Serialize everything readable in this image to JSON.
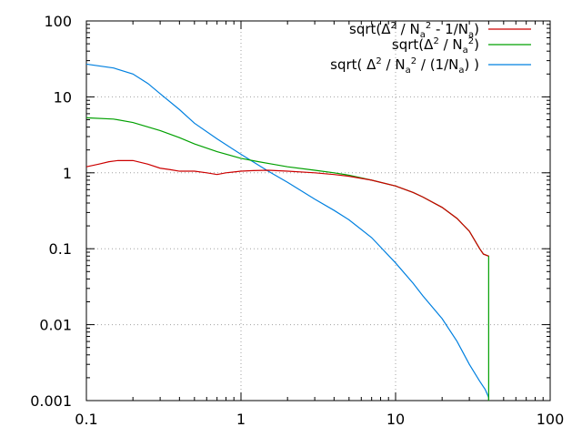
{
  "chart_data": {
    "type": "line",
    "title": "",
    "xlabel": "",
    "ylabel": "",
    "xscale": "log",
    "yscale": "log",
    "xlim": [
      0.1,
      100
    ],
    "ylim": [
      0.001,
      100
    ],
    "grid": true,
    "legend_position": "top-right",
    "x_ticks": [
      "0.1",
      "1",
      "10",
      "100"
    ],
    "y_ticks": [
      "0.001",
      "0.01",
      "0.1",
      "1",
      "10",
      "100"
    ],
    "series": [
      {
        "name": "sqrt(Δ² / Na² - 1/Na)",
        "legend_parts": [
          "sqrt(",
          "Δ",
          "2",
          " / N",
          "a",
          "2",
          " - 1/N",
          "a",
          ")"
        ],
        "color": "#cc0000",
        "x": [
          0.1,
          0.12,
          0.14,
          0.16,
          0.2,
          0.25,
          0.3,
          0.35,
          0.4,
          0.5,
          0.6,
          0.7,
          0.8,
          1.0,
          1.2,
          1.5,
          2,
          3,
          4,
          5,
          7,
          10,
          13,
          15,
          20,
          25,
          30,
          35,
          37,
          40
        ],
        "y": [
          1.2,
          1.3,
          1.4,
          1.45,
          1.45,
          1.3,
          1.15,
          1.1,
          1.05,
          1.05,
          1.0,
          0.95,
          1.0,
          1.05,
          1.07,
          1.08,
          1.05,
          1.0,
          0.95,
          0.9,
          0.8,
          0.67,
          0.55,
          0.48,
          0.35,
          0.25,
          0.17,
          0.1,
          0.085,
          0.08
        ]
      },
      {
        "name": "sqrt(Δ² / Na²)",
        "legend_parts": [
          "sqrt(",
          "Δ",
          "2",
          " / N",
          "a",
          "2",
          ")"
        ],
        "color": "#00a000",
        "x": [
          0.1,
          0.15,
          0.2,
          0.3,
          0.4,
          0.5,
          0.7,
          1.0,
          1.3,
          1.6,
          2,
          3,
          4,
          5,
          7,
          10,
          13,
          15,
          20,
          25,
          30,
          35,
          37,
          40,
          40.01
        ],
        "y": [
          5.3,
          5.1,
          4.6,
          3.6,
          2.9,
          2.4,
          1.9,
          1.55,
          1.4,
          1.3,
          1.2,
          1.08,
          1.0,
          0.93,
          0.8,
          0.67,
          0.55,
          0.48,
          0.35,
          0.25,
          0.17,
          0.1,
          0.085,
          0.08,
          0.001
        ]
      },
      {
        "name": "sqrt( Δ² / Na² / (1/Na) )",
        "legend_parts": [
          "sqrt( ",
          "Δ",
          "2",
          " / N",
          "a",
          "2",
          " / (1/N",
          "a",
          ") )"
        ],
        "color": "#0080e0",
        "x": [
          0.1,
          0.15,
          0.2,
          0.25,
          0.3,
          0.4,
          0.5,
          0.7,
          1.0,
          1.5,
          2,
          3,
          4,
          5,
          7,
          10,
          13,
          15,
          20,
          25,
          30,
          35,
          38,
          40
        ],
        "y": [
          27,
          24,
          20,
          15,
          11,
          6.8,
          4.5,
          2.8,
          1.75,
          1.05,
          0.75,
          0.45,
          0.32,
          0.24,
          0.14,
          0.065,
          0.035,
          0.024,
          0.012,
          0.006,
          0.003,
          0.0018,
          0.0014,
          0.0011
        ]
      }
    ]
  }
}
